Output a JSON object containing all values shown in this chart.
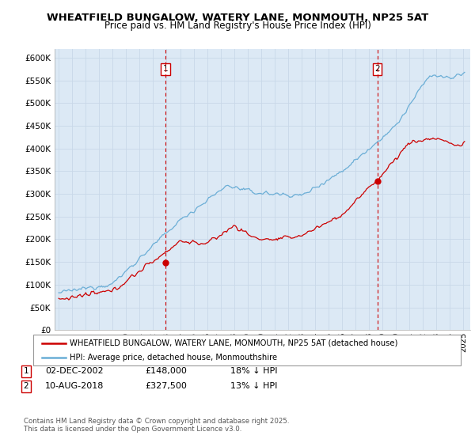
{
  "title": "WHEATFIELD BUNGALOW, WATERY LANE, MONMOUTH, NP25 5AT",
  "subtitle": "Price paid vs. HM Land Registry's House Price Index (HPI)",
  "ylabel_ticks": [
    "£0",
    "£50K",
    "£100K",
    "£150K",
    "£200K",
    "£250K",
    "£300K",
    "£350K",
    "£400K",
    "£450K",
    "£500K",
    "£550K",
    "£600K"
  ],
  "ytick_vals": [
    0,
    50000,
    100000,
    150000,
    200000,
    250000,
    300000,
    350000,
    400000,
    450000,
    500000,
    550000,
    600000
  ],
  "ylim": [
    0,
    620000
  ],
  "xlim_start": 1994.7,
  "xlim_end": 2025.5,
  "hpi_color": "#6baed6",
  "sale_color": "#cc0000",
  "vline_color": "#cc0000",
  "bg_color": "#dce9f5",
  "marker1_x": 2002.92,
  "marker2_x": 2018.61,
  "legend_line1": "WHEATFIELD BUNGALOW, WATERY LANE, MONMOUTH, NP25 5AT (detached house)",
  "legend_line2": "HPI: Average price, detached house, Monmouthshire",
  "footer": "Contains HM Land Registry data © Crown copyright and database right 2025.\nThis data is licensed under the Open Government Licence v3.0.",
  "background_color": "#ffffff",
  "grid_color": "#c8d8e8"
}
